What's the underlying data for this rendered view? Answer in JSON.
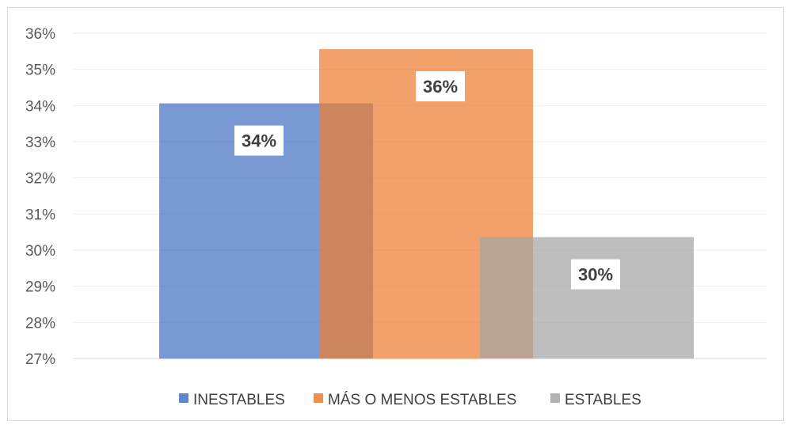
{
  "chart_data": {
    "type": "bar",
    "title": "",
    "xlabel": "",
    "ylabel": "",
    "ylim": [
      27,
      36
    ],
    "y_ticks": [
      "27%",
      "28%",
      "29%",
      "30%",
      "31%",
      "32%",
      "33%",
      "34%",
      "35%",
      "36%"
    ],
    "grid": true,
    "legend_position": "bottom",
    "series": [
      {
        "name": "INESTABLES",
        "value": 34.06,
        "label": "34%",
        "color": "#4472c4"
      },
      {
        "name": "MÁS O MENOS ESTABLES",
        "value": 35.56,
        "label": "36%",
        "color": "#ed7d31"
      },
      {
        "name": "ESTABLES",
        "value": 30.36,
        "label": "30%",
        "color": "#a5a5a5"
      }
    ]
  }
}
